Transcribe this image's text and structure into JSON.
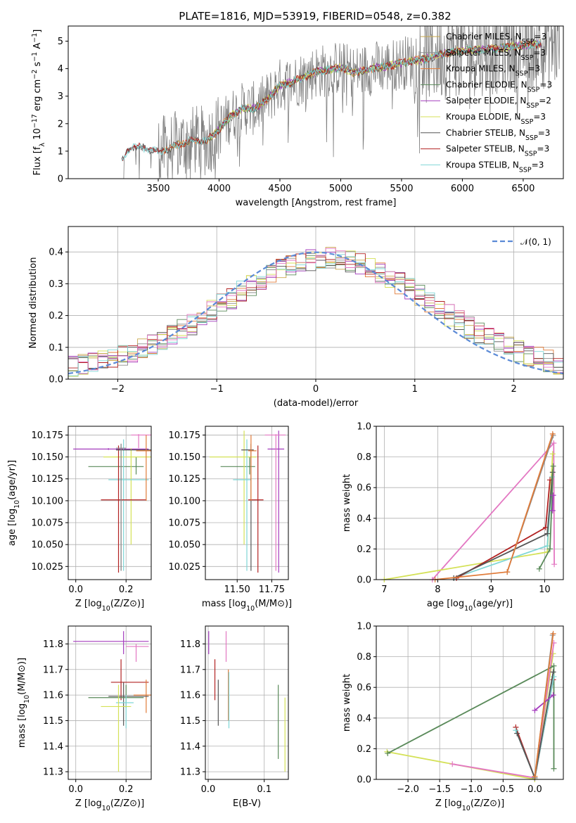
{
  "figure": {
    "title": "PLATE=1816, MJD=53919, FIBERID=0548, z=0.382"
  },
  "colors": {
    "Chabrier MILES": "#c8a84b",
    "Salpeter MILES": "#8c8c8c",
    "Kroupa MILES": "#e07b39",
    "Chabrier ELODIE": "#5a8a5a",
    "Salpeter ELODIE": "#a43cbd",
    "Kroupa ELODIE": "#d4e157",
    "Chabrier STELIB": "#555555",
    "Salpeter STELIB": "#b22222",
    "Kroupa STELIB": "#7fd6d6",
    "pink": "#e377c2",
    "observed": "#808080",
    "normal": "#5b8ad6"
  },
  "chart_data": [
    {
      "id": "spectrum",
      "type": "line",
      "xlabel": "wavelength [Angstrom, rest frame]",
      "ylabel": "Flux [f_λ 10^-17 erg cm^-2 s^-1 A^-1]",
      "xlim": [
        2760,
        6830
      ],
      "ylim": [
        0,
        5.55
      ],
      "xticks": [
        3500,
        4000,
        4500,
        5000,
        5500,
        6000,
        6500
      ],
      "yticks": [
        0,
        1,
        2,
        3,
        4,
        5
      ],
      "grid": false,
      "legend_position": "top-right",
      "legend": [
        {
          "base": "Chabrier MILES, N",
          "sub": "SSP",
          "tail": "=3",
          "color_key": "Chabrier MILES"
        },
        {
          "base": "Salpeter MILES, N",
          "sub": "SSP",
          "tail": "=3",
          "color_key": "Salpeter MILES"
        },
        {
          "base": "Kroupa MILES, N",
          "sub": "SSP",
          "tail": "=3",
          "color_key": "Kroupa MILES"
        },
        {
          "base": "Chabrier ELODIE, N",
          "sub": "SSP",
          "tail": "=3",
          "color_key": "Chabrier ELODIE"
        },
        {
          "base": "Salpeter ELODIE, N",
          "sub": "SSP",
          "tail": "=2",
          "color_key": "Salpeter ELODIE"
        },
        {
          "base": "Kroupa ELODIE, N",
          "sub": "SSP",
          "tail": "=3",
          "color_key": "Kroupa ELODIE"
        },
        {
          "base": "Chabrier STELIB, N",
          "sub": "SSP",
          "tail": "=3",
          "color_key": "Chabrier STELIB"
        },
        {
          "base": "Salpeter STELIB, N",
          "sub": "SSP",
          "tail": "=3",
          "color_key": "Salpeter STELIB"
        },
        {
          "base": "Kroupa STELIB, N",
          "sub": "SSP",
          "tail": "=3",
          "color_key": "Kroupa STELIB"
        }
      ],
      "model_continuum": {
        "x": [
          3200,
          3250,
          3300,
          3400,
          3500,
          3600,
          3700,
          3800,
          3900,
          4000,
          4100,
          4200,
          4300,
          4400,
          4500,
          4600,
          4700,
          4800,
          4900,
          5000,
          5100,
          5200,
          5300,
          5400,
          5500,
          5600,
          5700,
          5800,
          5900,
          6000,
          6200,
          6400,
          6600
        ],
        "y": [
          0.6,
          1.05,
          1.15,
          1.1,
          1.0,
          1.1,
          1.3,
          1.4,
          1.35,
          1.8,
          2.3,
          2.55,
          2.55,
          2.9,
          3.4,
          3.5,
          3.7,
          3.9,
          3.95,
          4.05,
          3.85,
          3.95,
          4.05,
          4.1,
          4.2,
          4.3,
          4.35,
          4.5,
          4.6,
          4.65,
          4.7,
          4.8,
          4.9
        ]
      }
    },
    {
      "id": "residuals",
      "type": "line",
      "xlabel": "(data-model)/error",
      "ylabel": "Normed distribution",
      "xlim": [
        -2.5,
        2.5
      ],
      "ylim": [
        0,
        0.48
      ],
      "xticks": [
        -2,
        -1,
        0,
        1,
        2
      ],
      "yticks": [
        0.0,
        0.1,
        0.2,
        0.3,
        0.4
      ],
      "grid": true,
      "legend_position": "top-right",
      "legend": [
        {
          "label": "𝒩(0, 1)",
          "color_key": "normal"
        }
      ],
      "normal_curve": {
        "mean": 0,
        "sigma": 1
      }
    },
    {
      "id": "age-vs-Z",
      "type": "scatter",
      "xlabel": "Z [log10(Z/Z⊙)]",
      "ylabel": "age [log10(age/yr)]",
      "xlim": [
        -0.03,
        0.3
      ],
      "ylim": [
        10.01,
        10.185
      ],
      "xticks": [
        0.0,
        0.2
      ],
      "yticks": [
        10.025,
        10.05,
        10.075,
        10.1,
        10.125,
        10.15,
        10.175
      ],
      "grid": true,
      "points": [
        {
          "c": "Salpeter ELODIE",
          "x": 0.13,
          "xe": [
            -0.01,
            0.29
          ],
          "y": 10.159,
          "ye": [
            10.158,
            10.16
          ]
        },
        {
          "c": "Chabrier ELODIE",
          "x": 0.24,
          "xe": [
            0.05,
            0.27
          ],
          "y": 10.139,
          "ye": [
            10.13,
            10.15
          ]
        },
        {
          "c": "Kroupa ELODIE",
          "x": 0.22,
          "xe": [
            0.11,
            0.3
          ],
          "y": 10.15,
          "ye": [
            10.05,
            10.16
          ]
        },
        {
          "c": "Kroupa STELIB",
          "x": 0.19,
          "xe": [
            0.13,
            0.29
          ],
          "y": 10.124,
          "ye": [
            10.02,
            10.17
          ]
        },
        {
          "c": "Salpeter STELIB",
          "x": 0.17,
          "xe": [
            0.1,
            0.28
          ],
          "y": 10.101,
          "ye": [
            10.018,
            10.163
          ]
        },
        {
          "c": "Chabrier STELIB",
          "x": 0.18,
          "xe": [
            0.16,
            0.3
          ],
          "y": 10.158,
          "ye": [
            10.02,
            10.165
          ]
        },
        {
          "c": "pink",
          "x": 0.25,
          "xe": [
            0.22,
            0.3
          ],
          "y": 10.175,
          "ye": [
            10.16,
            10.176
          ]
        },
        {
          "c": "Kroupa MILES",
          "x": 0.28,
          "xe": [
            0.24,
            0.3
          ],
          "y": 10.157,
          "ye": [
            10.1,
            10.175
          ]
        },
        {
          "c": "Salpeter MILES",
          "x": 0.18,
          "xe": [
            0.16,
            0.2
          ],
          "y": 10.16,
          "ye": [
            10.02,
            10.165
          ]
        }
      ]
    },
    {
      "id": "age-vs-mass",
      "type": "scatter",
      "xlabel": "mass [log10(M/M⊙)]",
      "ylabel": "",
      "xlim": [
        11.27,
        11.87
      ],
      "ylim": [
        10.01,
        10.185
      ],
      "xticks": [
        11.5,
        11.75
      ],
      "xticklabels": [
        "11.50",
        "11.75"
      ],
      "yticks": [
        10.025,
        10.05,
        10.075,
        10.1,
        10.125,
        10.15,
        10.175
      ],
      "grid": true,
      "points": [
        {
          "c": "Salpeter ELODIE",
          "x": 11.8,
          "xe": [
            11.72,
            11.84
          ],
          "y": 10.159,
          "ye": [
            10.018,
            10.18
          ]
        },
        {
          "c": "Chabrier ELODIE",
          "x": 11.59,
          "xe": [
            11.38,
            11.63
          ],
          "y": 10.139,
          "ye": [
            10.13,
            10.15
          ]
        },
        {
          "c": "Kroupa ELODIE",
          "x": 11.55,
          "xe": [
            11.3,
            11.64
          ],
          "y": 10.15,
          "ye": [
            10.05,
            10.18
          ]
        },
        {
          "c": "Kroupa STELIB",
          "x": 11.57,
          "xe": [
            11.47,
            11.6
          ],
          "y": 10.124,
          "ye": [
            10.02,
            10.17
          ]
        },
        {
          "c": "Salpeter STELIB",
          "x": 11.65,
          "xe": [
            11.58,
            11.69
          ],
          "y": 10.101,
          "ye": [
            10.018,
            10.163
          ]
        },
        {
          "c": "Chabrier STELIB",
          "x": 11.6,
          "xe": [
            11.53,
            11.62
          ],
          "y": 10.158,
          "ye": [
            10.02,
            10.165
          ]
        },
        {
          "c": "pink",
          "x": 11.78,
          "xe": [
            11.7,
            11.85
          ],
          "y": 10.175,
          "ye": [
            10.02,
            10.176
          ]
        },
        {
          "c": "Kroupa MILES",
          "x": 11.6,
          "xe": [
            11.58,
            11.64
          ],
          "y": 10.157,
          "ye": [
            10.1,
            10.175
          ]
        }
      ]
    },
    {
      "id": "weight-vs-age",
      "type": "line",
      "xlabel": "age [log10(age/yr)]",
      "ylabel": "mass weight",
      "xlim": [
        6.85,
        10.35
      ],
      "ylim": [
        0,
        1.0
      ],
      "xticks": [
        7,
        8,
        9,
        10
      ],
      "yticks": [
        0.0,
        0.2,
        0.4,
        0.6,
        0.8,
        1.0
      ],
      "grid": true,
      "lines": [
        {
          "c": "pink",
          "x": [
            7.9,
            10.17,
            10.18
          ],
          "y": [
            0.0,
            0.89,
            0.1
          ]
        },
        {
          "c": "Kroupa ELODIE",
          "x": [
            7.0,
            10.05,
            10.15
          ],
          "y": [
            0.0,
            0.18,
            0.82
          ]
        },
        {
          "c": "Kroupa STELIB",
          "x": [
            8.3,
            10.05,
            10.14
          ],
          "y": [
            0.01,
            0.22,
            0.67
          ]
        },
        {
          "c": "Salpeter STELIB",
          "x": [
            8.35,
            10.02,
            10.1
          ],
          "y": [
            0.01,
            0.34,
            0.65
          ]
        },
        {
          "c": "Chabrier STELIB",
          "x": [
            8.3,
            10.05,
            10.15
          ],
          "y": [
            0.01,
            0.3,
            0.7
          ]
        },
        {
          "c": "Chabrier ELODIE",
          "x": [
            9.9,
            10.1,
            10.16
          ],
          "y": [
            0.07,
            0.2,
            0.74
          ]
        },
        {
          "c": "Salpeter ELODIE",
          "x": [
            10.15,
            10.16
          ],
          "y": [
            0.45,
            0.55
          ]
        },
        {
          "c": "Salpeter MILES",
          "x": [
            9.3,
            10.16
          ],
          "y": [
            0.05,
            0.94
          ]
        },
        {
          "c": "Kroupa MILES",
          "x": [
            7.95,
            9.3,
            10.15
          ],
          "y": [
            0.0,
            0.05,
            0.95
          ]
        }
      ]
    },
    {
      "id": "mass-vs-Z",
      "type": "scatter",
      "xlabel": "Z [log10(Z/Z⊙)]",
      "ylabel": "mass [log10(M/M⊙)]",
      "xlim": [
        -0.03,
        0.3
      ],
      "ylim": [
        11.27,
        11.87
      ],
      "xticks": [
        0.0,
        0.2
      ],
      "yticks": [
        11.3,
        11.4,
        11.5,
        11.6,
        11.7,
        11.8
      ],
      "grid": true,
      "points": [
        {
          "c": "Salpeter ELODIE",
          "x": 0.19,
          "xe": [
            -0.01,
            0.29
          ],
          "y": 11.81,
          "ye": [
            11.76,
            11.85
          ]
        },
        {
          "c": "pink",
          "x": 0.24,
          "xe": [
            0.2,
            0.29
          ],
          "y": 11.79,
          "ye": [
            11.73,
            11.8
          ]
        },
        {
          "c": "Salpeter STELIB",
          "x": 0.18,
          "xe": [
            0.14,
            0.29
          ],
          "y": 11.65,
          "ye": [
            11.58,
            11.74
          ]
        },
        {
          "c": "Kroupa MILES",
          "x": 0.28,
          "xe": [
            0.23,
            0.3
          ],
          "y": 11.6,
          "ye": [
            11.53,
            11.66
          ]
        },
        {
          "c": "Chabrier STELIB",
          "x": 0.19,
          "xe": [
            0.13,
            0.29
          ],
          "y": 11.595,
          "ye": [
            11.48,
            11.65
          ]
        },
        {
          "c": "Chabrier ELODIE",
          "x": 0.2,
          "xe": [
            0.05,
            0.27
          ],
          "y": 11.59,
          "ye": [
            11.55,
            11.64
          ]
        },
        {
          "c": "Kroupa STELIB",
          "x": 0.2,
          "xe": [
            0.16,
            0.23
          ],
          "y": 11.57,
          "ye": [
            11.47,
            11.6
          ]
        },
        {
          "c": "Kroupa ELODIE",
          "x": 0.17,
          "xe": [
            0.1,
            0.22
          ],
          "y": 11.555,
          "ye": [
            11.3,
            11.64
          ]
        }
      ]
    },
    {
      "id": "mass-vs-EBV",
      "type": "scatter",
      "xlabel": "E(B-V)",
      "ylabel": "",
      "xlim": [
        -0.005,
        0.143
      ],
      "ylim": [
        11.27,
        11.87
      ],
      "xticks": [
        0.0,
        0.1
      ],
      "yticks": [
        11.3,
        11.4,
        11.5,
        11.6,
        11.7,
        11.8
      ],
      "grid": true,
      "points": [
        {
          "c": "Salpeter ELODIE",
          "x": 0.001,
          "y": 11.81,
          "ye": [
            11.76,
            11.85
          ]
        },
        {
          "c": "Salpeter STELIB",
          "x": 0.012,
          "y": 11.65,
          "ye": [
            11.58,
            11.74
          ]
        },
        {
          "c": "Chabrier STELIB",
          "x": 0.018,
          "y": 11.6,
          "ye": [
            11.48,
            11.66
          ]
        },
        {
          "c": "pink",
          "x": 0.032,
          "y": 11.79,
          "ye": [
            11.73,
            11.85
          ]
        },
        {
          "c": "Kroupa MILES",
          "x": 0.036,
          "y": 11.6,
          "ye": [
            11.5,
            11.7
          ]
        },
        {
          "c": "Kroupa STELIB",
          "x": 0.037,
          "y": 11.57,
          "ye": [
            11.47,
            11.69
          ]
        },
        {
          "c": "Chabrier ELODIE",
          "x": 0.125,
          "y": 11.59,
          "ye": [
            11.35,
            11.64
          ]
        },
        {
          "c": "Kroupa ELODIE",
          "x": 0.137,
          "y": 11.56,
          "ye": [
            11.3,
            11.59
          ]
        }
      ]
    },
    {
      "id": "weight-vs-Z",
      "type": "line",
      "xlabel": "Z [log10(Z/Z⊙)]",
      "ylabel": "mass weight",
      "xlim": [
        -2.5,
        0.45
      ],
      "ylim": [
        0,
        1.0
      ],
      "xticks": [
        -2.0,
        -1.5,
        -1.0,
        -0.5,
        0.0,
        0.5
      ],
      "yticks": [
        0.0,
        0.2,
        0.4,
        0.6,
        0.8,
        1.0
      ],
      "grid": true,
      "lines": [
        {
          "c": "Kroupa ELODIE",
          "x": [
            -2.33,
            0.0,
            0.29
          ],
          "y": [
            0.18,
            0.0,
            0.82
          ]
        },
        {
          "c": "pink",
          "x": [
            -1.3,
            0.0,
            0.3
          ],
          "y": [
            0.1,
            0.01,
            0.89
          ]
        },
        {
          "c": "Chabrier ELODIE",
          "x": [
            -2.32,
            0.3,
            0.3
          ],
          "y": [
            0.17,
            0.74,
            0.07
          ]
        },
        {
          "c": "Salpeter STELIB",
          "x": [
            -0.3,
            0.0,
            0.29
          ],
          "y": [
            0.34,
            0.01,
            0.65
          ]
        },
        {
          "c": "Kroupa STELIB",
          "x": [
            -0.3,
            0.0,
            0.3
          ],
          "y": [
            0.32,
            0.01,
            0.67
          ]
        },
        {
          "c": "Chabrier STELIB",
          "x": [
            -0.28,
            0.0,
            0.29
          ],
          "y": [
            0.3,
            0.01,
            0.7
          ]
        },
        {
          "c": "Salpeter ELODIE",
          "x": [
            0.0,
            0.29
          ],
          "y": [
            0.45,
            0.55
          ]
        },
        {
          "c": "Salpeter MILES",
          "x": [
            0.0,
            0.28
          ],
          "y": [
            0.01,
            0.94
          ]
        },
        {
          "c": "Kroupa MILES",
          "x": [
            0.0,
            0.29
          ],
          "y": [
            0.02,
            0.95
          ]
        }
      ]
    }
  ]
}
